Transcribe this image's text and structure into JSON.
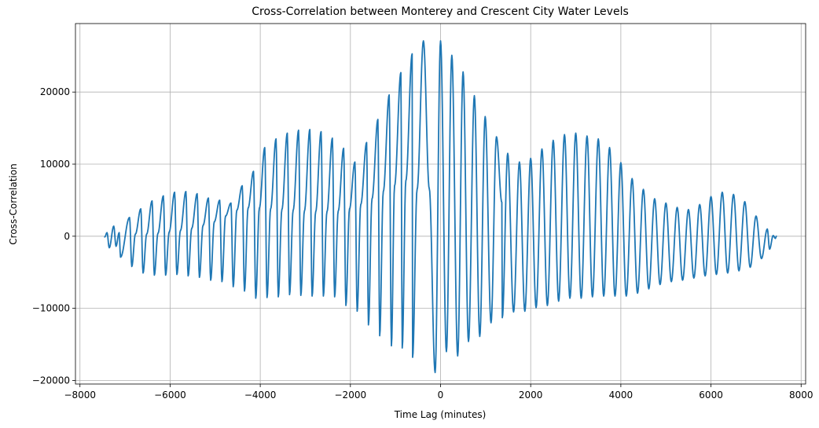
{
  "chart_data": {
    "type": "line",
    "title": "Cross-Correlation between Monterey and Crescent City Water Levels",
    "xlabel": "Time Lag (minutes)",
    "ylabel": "Cross-Correlation",
    "xlim": [
      -8100,
      8100
    ],
    "ylim": [
      -20500,
      29500
    ],
    "x_ticks": [
      -8000,
      -6000,
      -4000,
      -2000,
      0,
      2000,
      4000,
      6000,
      8000
    ],
    "x_tick_labels": [
      "−8000",
      "−6000",
      "−4000",
      "−2000",
      "0",
      "2000",
      "4000",
      "6000",
      "8000"
    ],
    "y_ticks": [
      -20000,
      -10000,
      0,
      10000,
      20000
    ],
    "y_tick_labels": [
      "−20000",
      "−10000",
      "0",
      "10000",
      "20000"
    ],
    "grid": true,
    "series_color": "#1f77b4",
    "series": [
      {
        "name": "cross-correlation",
        "x_range": [
          -7450,
          7450
        ],
        "sample_step": 10,
        "semidiurnal_period_minutes": 745,
        "diurnal_period_minutes": 1490,
        "peak_value_at_zero_lag": 27100,
        "min_value": -18900,
        "local_max_peaks": [
          [
            -7400,
            500
          ],
          [
            -7250,
            1400
          ],
          [
            -7130,
            500
          ],
          [
            -6900,
            2600
          ],
          [
            -6770,
            300
          ],
          [
            -6650,
            3800
          ],
          [
            -6520,
            300
          ],
          [
            -6400,
            4900
          ],
          [
            -6270,
            400
          ],
          [
            -6150,
            5600
          ],
          [
            -6020,
            600
          ],
          [
            -5900,
            6100
          ],
          [
            -5770,
            800
          ],
          [
            -5650,
            6200
          ],
          [
            -5520,
            1100
          ],
          [
            -5400,
            5900
          ],
          [
            -5270,
            1500
          ],
          [
            -5150,
            5300
          ],
          [
            -5020,
            2000
          ],
          [
            -4900,
            5000
          ],
          [
            -4770,
            2800
          ],
          [
            -4650,
            4600
          ],
          [
            -4520,
            3600
          ],
          [
            -4400,
            7000
          ],
          [
            -4270,
            3900
          ],
          [
            -4150,
            9000
          ],
          [
            -4020,
            3900
          ],
          [
            -3900,
            12300
          ],
          [
            -3770,
            3800
          ],
          [
            -3650,
            13500
          ],
          [
            -3520,
            3700
          ],
          [
            -3400,
            14300
          ],
          [
            -3270,
            3600
          ],
          [
            -3150,
            14700
          ],
          [
            -3020,
            3500
          ],
          [
            -2900,
            14800
          ],
          [
            -2770,
            3400
          ],
          [
            -2650,
            14500
          ],
          [
            -2520,
            3400
          ],
          [
            -2400,
            13600
          ],
          [
            -2270,
            3500
          ],
          [
            -2150,
            12200
          ],
          [
            -2020,
            3800
          ],
          [
            -1900,
            10300
          ],
          [
            -1770,
            4400
          ],
          [
            -1640,
            13000
          ],
          [
            -1520,
            5200
          ],
          [
            -1390,
            16200
          ],
          [
            -1270,
            6200
          ],
          [
            -1140,
            19600
          ],
          [
            -1020,
            7000
          ],
          [
            -880,
            22700
          ],
          [
            -770,
            7700
          ],
          [
            -630,
            25300
          ],
          [
            -520,
            6500
          ],
          [
            -380,
            27100
          ],
          [
            -250,
            6600
          ],
          [
            0,
            27100
          ],
          [
            250,
            25100
          ],
          [
            380,
            7500
          ],
          [
            500,
            22800
          ],
          [
            620,
            7400
          ],
          [
            750,
            19500
          ],
          [
            870,
            6700
          ],
          [
            990,
            16600
          ],
          [
            1120,
            5600
          ],
          [
            1240,
            13800
          ],
          [
            1360,
            4700
          ],
          [
            1490,
            11500
          ],
          [
            1620,
            3900
          ],
          [
            1750,
            10300
          ],
          [
            1870,
            3500
          ],
          [
            2000,
            10800
          ],
          [
            2120,
            3200
          ],
          [
            2250,
            12100
          ],
          [
            2370,
            3100
          ],
          [
            2500,
            13300
          ],
          [
            2620,
            3000
          ],
          [
            2750,
            14100
          ],
          [
            2870,
            3000
          ],
          [
            3000,
            14300
          ],
          [
            3120,
            3100
          ],
          [
            3250,
            13900
          ],
          [
            3370,
            3300
          ],
          [
            3500,
            13500
          ],
          [
            3620,
            3600
          ],
          [
            3750,
            12300
          ],
          [
            3870,
            3900
          ],
          [
            4000,
            10200
          ],
          [
            4120,
            3900
          ],
          [
            4250,
            8000
          ],
          [
            4370,
            3700
          ],
          [
            4500,
            6500
          ],
          [
            4620,
            3300
          ],
          [
            4750,
            5200
          ],
          [
            4870,
            2600
          ],
          [
            5000,
            4600
          ],
          [
            5120,
            1900
          ],
          [
            5250,
            4000
          ],
          [
            5370,
            1500
          ],
          [
            5500,
            3700
          ],
          [
            5620,
            1200
          ],
          [
            5750,
            4400
          ],
          [
            5870,
            900
          ],
          [
            6000,
            5500
          ],
          [
            6120,
            700
          ],
          [
            6250,
            6100
          ],
          [
            6370,
            500
          ],
          [
            6500,
            5800
          ],
          [
            6620,
            400
          ],
          [
            6750,
            4800
          ],
          [
            6870,
            300
          ],
          [
            7000,
            2800
          ],
          [
            7120,
            200
          ],
          [
            7250,
            1000
          ],
          [
            7380,
            100
          ],
          [
            7450,
            0
          ]
        ],
        "local_min_troughs": [
          [
            -7450,
            -100
          ],
          [
            -7350,
            -1600
          ],
          [
            -7200,
            -1400
          ],
          [
            -7100,
            -2900
          ],
          [
            -6850,
            -4200
          ],
          [
            -6600,
            -5100
          ],
          [
            -6350,
            -5400
          ],
          [
            -6100,
            -5400
          ],
          [
            -5850,
            -5300
          ],
          [
            -5600,
            -5500
          ],
          [
            -5350,
            -5700
          ],
          [
            -5100,
            -6100
          ],
          [
            -4850,
            -6300
          ],
          [
            -4600,
            -7000
          ],
          [
            -4350,
            -7600
          ],
          [
            -4100,
            -8600
          ],
          [
            -3850,
            -8500
          ],
          [
            -3600,
            -8400
          ],
          [
            -3350,
            -8100
          ],
          [
            -3100,
            -8200
          ],
          [
            -2850,
            -8300
          ],
          [
            -2600,
            -8300
          ],
          [
            -2350,
            -8400
          ],
          [
            -2100,
            -9600
          ],
          [
            -1850,
            -10400
          ],
          [
            -1600,
            -12300
          ],
          [
            -1350,
            -13800
          ],
          [
            -1090,
            -15200
          ],
          [
            -850,
            -15500
          ],
          [
            -620,
            -16800
          ],
          [
            -380,
            -17600
          ],
          [
            -120,
            -18900
          ],
          [
            130,
            -16000
          ],
          [
            380,
            -16600
          ],
          [
            620,
            -14600
          ],
          [
            870,
            -13900
          ],
          [
            1120,
            -12000
          ],
          [
            1370,
            -11300
          ],
          [
            1620,
            -10500
          ],
          [
            1870,
            -10400
          ],
          [
            2120,
            -9900
          ],
          [
            2370,
            -9600
          ],
          [
            2620,
            -9000
          ],
          [
            2870,
            -8600
          ],
          [
            3120,
            -8600
          ],
          [
            3370,
            -8400
          ],
          [
            3620,
            -8300
          ],
          [
            3870,
            -8300
          ],
          [
            4120,
            -8300
          ],
          [
            4370,
            -7900
          ],
          [
            4620,
            -7300
          ],
          [
            4870,
            -6700
          ],
          [
            5120,
            -6300
          ],
          [
            5370,
            -6100
          ],
          [
            5620,
            -5800
          ],
          [
            5870,
            -5500
          ],
          [
            6120,
            -5300
          ],
          [
            6370,
            -5100
          ],
          [
            6620,
            -4800
          ],
          [
            6870,
            -4300
          ],
          [
            7120,
            -3100
          ],
          [
            7300,
            -1800
          ],
          [
            7430,
            -300
          ]
        ]
      }
    ]
  }
}
